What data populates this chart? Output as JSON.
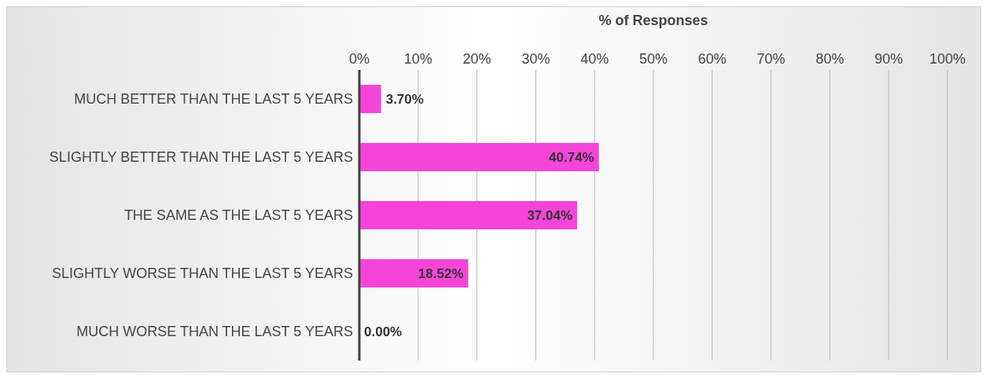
{
  "chart_data": {
    "type": "bar",
    "orientation": "horizontal",
    "xlabel": "% of Responses",
    "categories": [
      "MUCH BETTER THAN THE LAST 5 YEARS",
      "SLIGHTLY BETTER THAN THE LAST 5 YEARS",
      "THE SAME AS THE LAST 5 YEARS",
      "SLIGHTLY WORSE THAN THE LAST 5 YEARS",
      "MUCH WORSE THAN THE LAST 5 YEARS"
    ],
    "values": [
      3.7,
      40.74,
      37.04,
      18.52,
      0.0
    ],
    "value_labels": [
      "3.70%",
      "40.74%",
      "37.04%",
      "18.52%",
      "0.00%"
    ],
    "color": "#f545d9",
    "xlim": [
      0,
      100
    ],
    "xticks": [
      {
        "value": 0,
        "label": "0%"
      },
      {
        "value": 10,
        "label": "10%"
      },
      {
        "value": 20,
        "label": "20%"
      },
      {
        "value": 30,
        "label": "30%"
      },
      {
        "value": 40,
        "label": "40%"
      },
      {
        "value": 50,
        "label": "50%"
      },
      {
        "value": 60,
        "label": "60%"
      },
      {
        "value": 70,
        "label": "70%"
      },
      {
        "value": 80,
        "label": "80%"
      },
      {
        "value": 90,
        "label": "90%"
      },
      {
        "value": 100,
        "label": "100%"
      }
    ],
    "grid": "x"
  }
}
